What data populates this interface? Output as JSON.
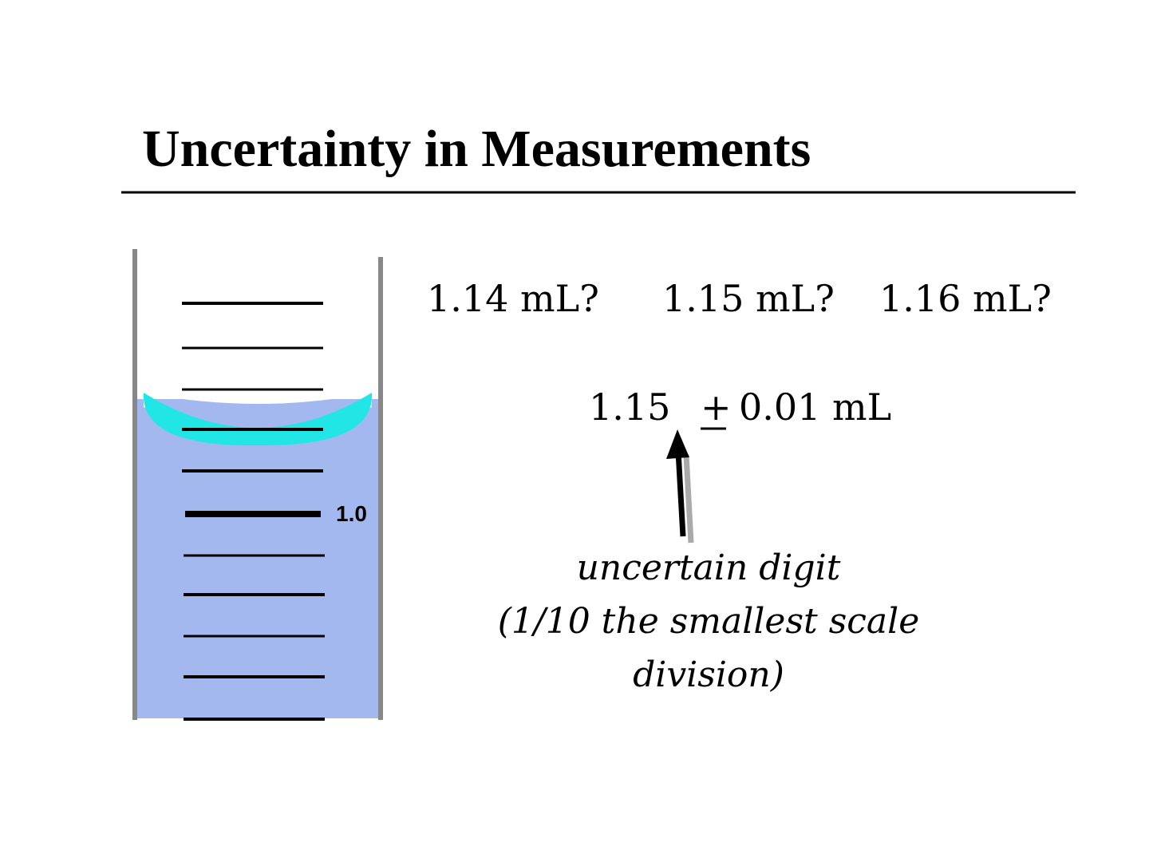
{
  "header": {
    "title": "Uncertainty in Measurements"
  },
  "cylinder": {
    "label": "1.0"
  },
  "guesses": [
    "1.14 mL?",
    "1.15 mL?",
    "1.16 mL?"
  ],
  "measurement": {
    "value": "1.15",
    "sign": "+",
    "uncertainty": "0.01 mL"
  },
  "annotation": [
    "uncertain digit",
    "(1/10 the smallest scale",
    "division)"
  ]
}
